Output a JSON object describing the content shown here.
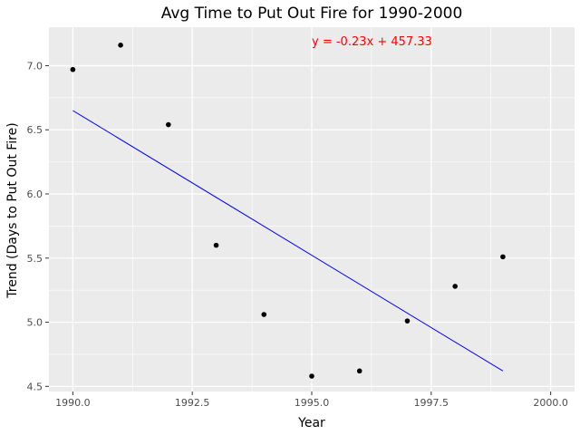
{
  "chart_data": {
    "type": "scatter",
    "title": "Avg Time to Put Out Fire for 1990-2000",
    "xlabel": "Year",
    "ylabel": "Trend (Days to Put Out Fire)",
    "xlim": [
      1989.5,
      2000.5
    ],
    "ylim": [
      4.46,
      7.3
    ],
    "x_ticks": [
      1990.0,
      1992.5,
      1995.0,
      1997.5,
      2000.0
    ],
    "x_tick_labels": [
      "1990.0",
      "1992.5",
      "1995.0",
      "1997.5",
      "2000.0"
    ],
    "y_ticks": [
      4.5,
      5.0,
      5.5,
      6.0,
      6.5,
      7.0
    ],
    "y_tick_labels": [
      "4.5",
      "5.0",
      "5.5",
      "6.0",
      "6.5",
      "7.0"
    ],
    "grid": true,
    "panel_background": "#ebebeb",
    "point_color": "#000000",
    "points": [
      {
        "x": 1990,
        "y": 6.97
      },
      {
        "x": 1991,
        "y": 7.16
      },
      {
        "x": 1992,
        "y": 6.54
      },
      {
        "x": 1993,
        "y": 5.6
      },
      {
        "x": 1994,
        "y": 5.06
      },
      {
        "x": 1995,
        "y": 4.58
      },
      {
        "x": 1996,
        "y": 4.62
      },
      {
        "x": 1997,
        "y": 5.01
      },
      {
        "x": 1998,
        "y": 5.28
      },
      {
        "x": 1999,
        "y": 5.51
      }
    ],
    "trendline": {
      "color": "#0000ff",
      "x": [
        1990,
        1999
      ],
      "y": [
        6.65,
        4.62
      ]
    },
    "annotation": {
      "text": "y = -0.23x + 457.33",
      "color": "#ff0000",
      "x": 1995.0,
      "y": 7.16
    }
  }
}
